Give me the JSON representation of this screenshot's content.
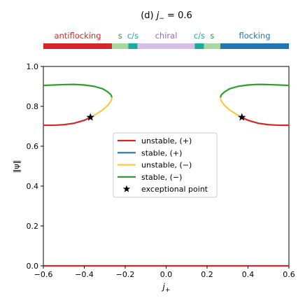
{
  "chart_data": {
    "type": "line",
    "title_prefix": "(d) ",
    "title_var": "j",
    "title_sub": "−",
    "title_suffix": " = 0.6",
    "xlabel_var": "j",
    "xlabel_sub": "+",
    "ylabel": "‖ψ‖",
    "xlim": [
      -0.6,
      0.6
    ],
    "ylim": [
      0.0,
      1.0
    ],
    "xticks": [
      {
        "value": -0.6,
        "label": "−0.6"
      },
      {
        "value": -0.4,
        "label": "−0.4"
      },
      {
        "value": -0.2,
        "label": "−0.2"
      },
      {
        "value": 0.0,
        "label": "0.0"
      },
      {
        "value": 0.2,
        "label": "0.2"
      },
      {
        "value": 0.4,
        "label": "0.4"
      },
      {
        "value": 0.6,
        "label": "0.6"
      }
    ],
    "yticks": [
      {
        "value": 0.0,
        "label": "0.0"
      },
      {
        "value": 0.2,
        "label": "0.2"
      },
      {
        "value": 0.4,
        "label": "0.4"
      },
      {
        "value": 0.6,
        "label": "0.6"
      },
      {
        "value": 0.8,
        "label": "0.8"
      },
      {
        "value": 1.0,
        "label": "1.0"
      }
    ],
    "phase_bar": [
      {
        "label": "antiflocking",
        "x0": -0.6,
        "x1": -0.265,
        "color": "#d62728",
        "label_color": "#d62728"
      },
      {
        "label": "s",
        "x0": -0.265,
        "x1": -0.185,
        "color": "#a8d8a0",
        "label_color": "#2ca02c"
      },
      {
        "label": "c/s",
        "x0": -0.185,
        "x1": -0.14,
        "color": "#1aab9b",
        "label_color": "#1aab9b"
      },
      {
        "label": "chiral",
        "x0": -0.14,
        "x1": 0.14,
        "color": "#d5bfe6",
        "label_color": "#9467bd"
      },
      {
        "label": "c/s",
        "x0": 0.14,
        "x1": 0.185,
        "color": "#1aab9b",
        "label_color": "#1aab9b"
      },
      {
        "label": "s",
        "x0": 0.185,
        "x1": 0.265,
        "color": "#a8d8a0",
        "label_color": "#2ca02c"
      },
      {
        "label": "flocking",
        "x0": 0.265,
        "x1": 0.6,
        "color": "#1f77b4",
        "label_color": "#1f77b4"
      }
    ],
    "series": [
      {
        "name": "unstable, (+)",
        "color": "#d62728",
        "segments": [
          [
            [
              -0.6,
              0.0
            ],
            [
              0.6,
              0.0
            ]
          ],
          [
            [
              -0.6,
              0.705
            ],
            [
              -0.55,
              0.705
            ],
            [
              -0.5,
              0.708
            ],
            [
              -0.45,
              0.715
            ],
            [
              -0.4,
              0.73
            ],
            [
              -0.37,
              0.745
            ]
          ],
          [
            [
              0.37,
              0.745
            ],
            [
              0.4,
              0.73
            ],
            [
              0.45,
              0.715
            ],
            [
              0.5,
              0.708
            ],
            [
              0.55,
              0.705
            ],
            [
              0.6,
              0.705
            ]
          ]
        ]
      },
      {
        "name": "stable, (+)",
        "color": "#1f77b4",
        "segments": []
      },
      {
        "name": "unstable, (−)",
        "color": "#f7c948",
        "segments": [
          [
            [
              -0.37,
              0.745
            ],
            [
              -0.34,
              0.762
            ],
            [
              -0.31,
              0.782
            ],
            [
              -0.285,
              0.805
            ],
            [
              -0.268,
              0.83
            ],
            [
              -0.265,
              0.845
            ]
          ],
          [
            [
              0.265,
              0.845
            ],
            [
              0.268,
              0.83
            ],
            [
              0.285,
              0.805
            ],
            [
              0.31,
              0.782
            ],
            [
              0.34,
              0.762
            ],
            [
              0.37,
              0.745
            ]
          ]
        ]
      },
      {
        "name": "stable, (−)",
        "color": "#2ca02c",
        "segments": [
          [
            [
              -0.6,
              0.905
            ],
            [
              -0.55,
              0.907
            ],
            [
              -0.5,
              0.909
            ],
            [
              -0.45,
              0.91
            ],
            [
              -0.4,
              0.907
            ],
            [
              -0.35,
              0.9
            ],
            [
              -0.31,
              0.888
            ],
            [
              -0.285,
              0.872
            ],
            [
              -0.27,
              0.858
            ],
            [
              -0.265,
              0.845
            ]
          ],
          [
            [
              0.265,
              0.845
            ],
            [
              0.27,
              0.858
            ],
            [
              0.285,
              0.872
            ],
            [
              0.31,
              0.888
            ],
            [
              0.35,
              0.9
            ],
            [
              0.4,
              0.907
            ],
            [
              0.45,
              0.91
            ],
            [
              0.5,
              0.909
            ],
            [
              0.55,
              0.907
            ],
            [
              0.6,
              0.905
            ]
          ]
        ]
      }
    ],
    "markers": {
      "name": "exceptional point",
      "symbol": "star",
      "color": "#000000",
      "points": [
        [
          -0.37,
          0.745
        ],
        [
          0.37,
          0.745
        ]
      ]
    },
    "legend": {
      "placement": "center",
      "entries": [
        {
          "label": "unstable, (+)",
          "kind": "line",
          "color": "#d62728"
        },
        {
          "label": "stable, (+)",
          "kind": "line",
          "color": "#1f77b4"
        },
        {
          "label": "unstable, (−)",
          "kind": "line",
          "color": "#f7c948"
        },
        {
          "label": "stable, (−)",
          "kind": "line",
          "color": "#2ca02c"
        },
        {
          "label": "exceptional point",
          "kind": "star",
          "color": "#000000"
        }
      ]
    },
    "grid": false
  }
}
